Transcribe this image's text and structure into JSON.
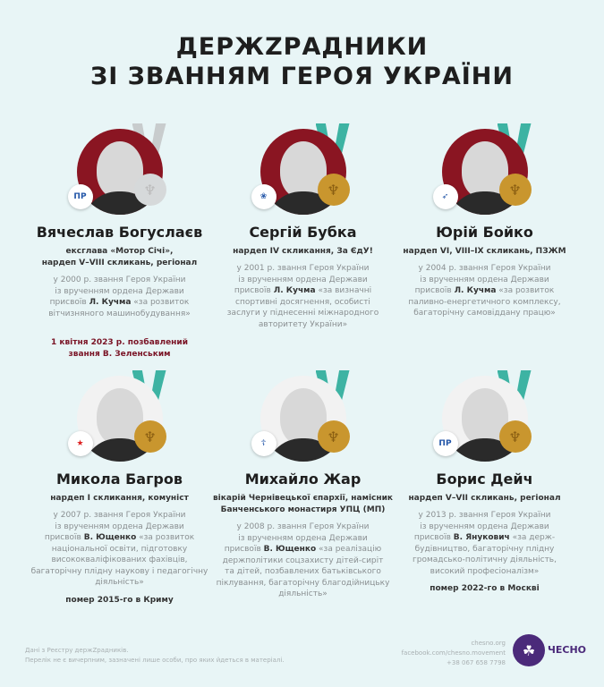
{
  "title": {
    "line1": "ДЕРЖZРАДНИКИ",
    "line2": "ЗІ ЗВАННЯМ ГЕРОЯ УКРАЇНИ"
  },
  "colors": {
    "background": "#e8f5f6",
    "ribbon": "#3db3a3",
    "medal": "#c9962e",
    "revoked": "#7a1426",
    "photo_bg_top": "#8a1522",
    "brand": "#4b2a7a"
  },
  "people": [
    {
      "name": "Вячеслав Богуслаєв",
      "role1": "ексглава «Мотор Січі»,",
      "role2": "нардеп V–VIII скликань, регіонал",
      "desc1": "у 2000 р. звання Героя України",
      "desc2": "із врученням ордена Держави",
      "desc3": "присвоїв",
      "awarder": "Л. Кучма",
      "desc4": "«за розвиток",
      "desc5": "вітчизняного машинобудування»",
      "desc6": "",
      "desc7": "",
      "note1": "1 квітня 2023 р. позбавлений",
      "note2": "звання В. Зеленським",
      "badge": "ПР",
      "revoked": true
    },
    {
      "name": "Сергій Бубка",
      "role1": "нардеп IV скликання, За ЄдУ!",
      "role2": "",
      "desc1": "у 2001 р. звання Героя України",
      "desc2": "із врученням ордена Держави",
      "desc3": "присвоїв",
      "awarder": "Л. Кучма",
      "desc4": "«за визначні",
      "desc5": "спортивні  досягнення, особисті",
      "desc6": "заслуги у піднесенні міжнародного",
      "desc7": "авторитету України»",
      "note1": "",
      "note2": "",
      "badge": "❀",
      "revoked": false
    },
    {
      "name": "Юрій Бойко",
      "role1": "нардеп VI, VIII–IX скликань, ПЗЖМ",
      "role2": "",
      "desc1": "у 2004 р. звання Героя України",
      "desc2": "із врученням ордена Держави",
      "desc3": "присвоїв",
      "awarder": "Л. Кучма",
      "desc4": "«за розвиток",
      "desc5": "паливно-енергетичного комплексу,",
      "desc6": "багаторічну самовіддану працю»",
      "desc7": "",
      "note1": "",
      "note2": "",
      "badge": "➶",
      "revoked": false
    },
    {
      "name": "Микола Багров",
      "role1": "нардеп I скликання, комуніст",
      "role2": "",
      "desc1": "у 2007 р. звання Героя України",
      "desc2": "із врученням ордена Держави",
      "desc3": "присвоїв",
      "awarder": "В. Ющенко",
      "desc4": "«за розвиток",
      "desc5": "національної освіти, підготовку",
      "desc6": "висококваліфікованих фахівців,",
      "desc7": "багаторічну плідну наукову і педагогічну діяльність»",
      "note1": "помер 2015-го в Криму",
      "note2": "",
      "badge": "★",
      "revoked": false
    },
    {
      "name": "Михайло Жар",
      "role1": "вікарій Чернівецької єпархії, намісник",
      "role2": "Банченського монастиря УПЦ (МП)",
      "desc1": "у 2008 р. звання Героя України",
      "desc2": "із врученням ордена Держави",
      "desc3": "присвоїв",
      "awarder": "В. Ющенко",
      "desc4": "«за реалізацію",
      "desc5": "держполітики соцзахисту дітей-сиріт",
      "desc6": "та дітей, позбавлених батьківського",
      "desc7": "піклування, багаторічну благодійницьку діяльність»",
      "note1": "",
      "note2": "",
      "badge": "☦",
      "revoked": false
    },
    {
      "name": "Борис Дейч",
      "role1": "нардеп V–VII скликань, регіонал",
      "role2": "",
      "desc1": "у 2013 р. звання Героя України",
      "desc2": "із врученням ордена Держави",
      "desc3": "присвоїв",
      "awarder": "В. Янукович",
      "desc4": "«за держ-",
      "desc5": "будівництво, багаторічну плідну",
      "desc6": "громадсько-політичну діяльність,",
      "desc7": "високий професіоналізм»",
      "note1": "помер 2022-го в Москві",
      "note2": "",
      "badge": "ПР",
      "revoked": false
    }
  ],
  "footer": {
    "source": "Дані з Реєстру держZрадників.",
    "disclaimer": "Перелік не є вичерпним, зазначені лише особи, про яких йдеться в матеріалі.",
    "site": "chesno.org",
    "facebook": "facebook.com/chesno.movement",
    "phone": "+38 067 658 7798",
    "brand": "ЧЕСНО"
  }
}
